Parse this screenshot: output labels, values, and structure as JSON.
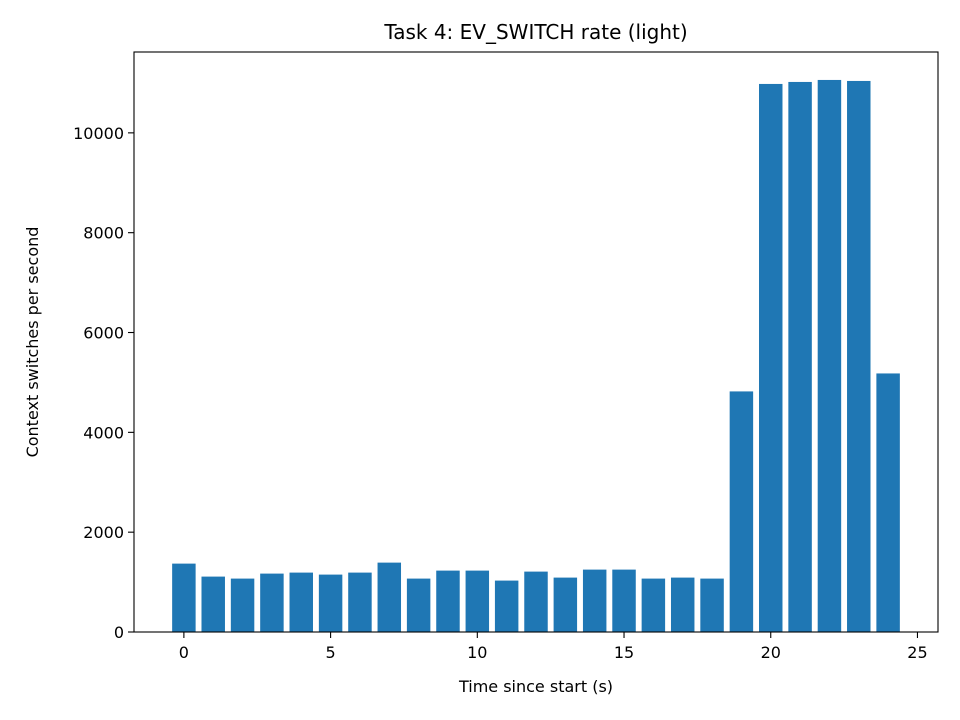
{
  "chart_data": {
    "type": "bar",
    "title": "Task 4: EV_SWITCH rate (light)",
    "xlabel": "Time since start (s)",
    "ylabel": "Context switches per second",
    "x": [
      0,
      1,
      2,
      3,
      4,
      5,
      6,
      7,
      8,
      9,
      10,
      11,
      12,
      13,
      14,
      15,
      16,
      17,
      18,
      19,
      20,
      21,
      22,
      23,
      24
    ],
    "values": [
      1370,
      1110,
      1070,
      1170,
      1190,
      1150,
      1190,
      1390,
      1070,
      1230,
      1230,
      1030,
      1210,
      1090,
      1250,
      1250,
      1070,
      1090,
      1070,
      4820,
      10980,
      11020,
      11060,
      11040,
      5180
    ],
    "xlim": [
      -1.7,
      25.7
    ],
    "ylim": [
      0,
      11620
    ],
    "xticks": [
      0,
      5,
      10,
      15,
      20,
      25
    ],
    "yticks": [
      0,
      2000,
      4000,
      6000,
      8000,
      10000
    ],
    "bar_color": "#1f77b4",
    "grid": false,
    "legend": "none"
  }
}
